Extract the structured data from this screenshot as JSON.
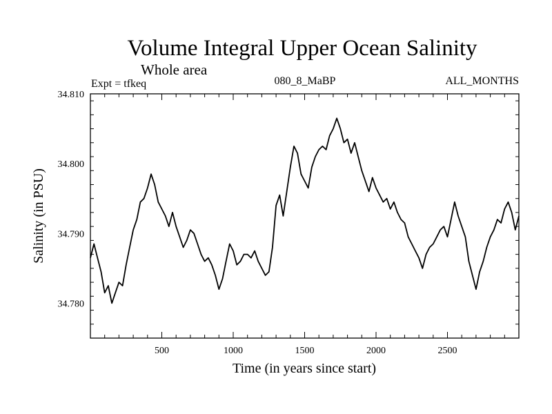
{
  "chart_data": {
    "type": "line",
    "title": "Volume Integral Upper Ocean Salinity",
    "subtitle": "Whole area",
    "header_left": "Expt = tfkeq",
    "header_center": "080_8_MaBP",
    "header_right": "ALL_MONTHS",
    "xlabel": "Time (in years since start)",
    "ylabel": "Salinity (in PSU)",
    "xlim": [
      0,
      3000
    ],
    "ylim": [
      34.775,
      34.81
    ],
    "xticks": [
      500,
      1000,
      1500,
      2000,
      2500
    ],
    "xtick_labels": [
      "500",
      "1000",
      "1500",
      "2000",
      "2500"
    ],
    "yticks": [
      34.78,
      34.79,
      34.8,
      34.81
    ],
    "ytick_labels": [
      "34.780",
      "34.790",
      "34.800",
      "34.810"
    ],
    "grid": false,
    "series": [
      {
        "x": [
          0,
          25,
          50,
          75,
          100,
          125,
          150,
          175,
          200,
          225,
          250,
          275,
          300,
          325,
          350,
          375,
          400,
          425,
          450,
          475,
          500,
          525,
          550,
          575,
          600,
          625,
          650,
          675,
          700,
          725,
          750,
          775,
          800,
          825,
          850,
          875,
          900,
          925,
          950,
          975,
          1000,
          1025,
          1050,
          1075,
          1100,
          1125,
          1150,
          1175,
          1200,
          1225,
          1250,
          1275,
          1300,
          1325,
          1350,
          1375,
          1400,
          1425,
          1450,
          1475,
          1500,
          1525,
          1550,
          1575,
          1600,
          1625,
          1650,
          1675,
          1700,
          1725,
          1750,
          1775,
          1800,
          1825,
          1850,
          1875,
          1900,
          1925,
          1950,
          1975,
          2000,
          2025,
          2050,
          2075,
          2100,
          2125,
          2150,
          2175,
          2200,
          2225,
          2250,
          2275,
          2300,
          2325,
          2350,
          2375,
          2400,
          2425,
          2450,
          2475,
          2500,
          2525,
          2550,
          2575,
          2600,
          2625,
          2650,
          2675,
          2700,
          2725,
          2750,
          2775,
          2800,
          2825,
          2850,
          2875,
          2900,
          2925,
          2950,
          2975,
          3000
        ],
        "values": [
          34.7865,
          34.7885,
          34.7865,
          34.7845,
          34.7815,
          34.7825,
          34.78,
          34.7815,
          34.783,
          34.7825,
          34.7855,
          34.788,
          34.7905,
          34.792,
          34.7945,
          34.795,
          34.7965,
          34.7985,
          34.797,
          34.7945,
          34.7935,
          34.7925,
          34.791,
          34.793,
          34.791,
          34.7895,
          34.788,
          34.789,
          34.7905,
          34.79,
          34.7885,
          34.787,
          34.786,
          34.7865,
          34.7855,
          34.784,
          34.782,
          34.7835,
          34.786,
          34.7885,
          34.7875,
          34.7855,
          34.786,
          34.787,
          34.787,
          34.7865,
          34.7875,
          34.786,
          34.785,
          34.784,
          34.7845,
          34.788,
          34.794,
          34.7955,
          34.7925,
          34.796,
          34.7995,
          34.8025,
          34.8015,
          34.7985,
          34.7975,
          34.7965,
          34.7995,
          34.801,
          34.802,
          34.8025,
          34.802,
          34.804,
          34.805,
          34.8065,
          34.805,
          34.803,
          34.8035,
          34.8015,
          34.803,
          34.801,
          34.799,
          34.7975,
          34.796,
          34.798,
          34.7965,
          34.7955,
          34.7945,
          34.795,
          34.7935,
          34.7945,
          34.793,
          34.792,
          34.7915,
          34.7895,
          34.7885,
          34.7875,
          34.7865,
          34.785,
          34.787,
          34.788,
          34.7885,
          34.7895,
          34.7905,
          34.791,
          34.7895,
          34.792,
          34.7945,
          34.7925,
          34.791,
          34.7895,
          34.786,
          34.784,
          34.782,
          34.7845,
          34.786,
          34.788,
          34.7895,
          34.7905,
          34.792,
          34.7915,
          34.7935,
          34.7945,
          34.793,
          34.7905,
          34.7925
        ]
      }
    ]
  }
}
